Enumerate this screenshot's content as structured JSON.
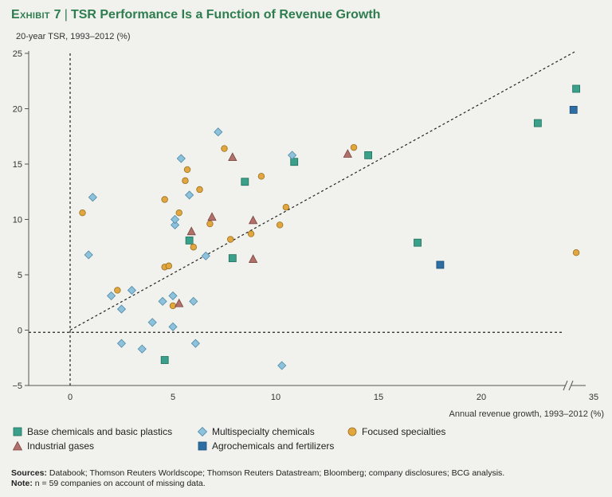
{
  "header": {
    "exhibit": "Exhibit 7",
    "separator": "|",
    "title": "TSR Performance Is a Function of Revenue Growth"
  },
  "colors": {
    "title": "#2e7d4f",
    "base_chem": "#3aa08a",
    "multi_spec": "#8ec2dc",
    "focused": "#e1a63d",
    "industrial": "#b1706a",
    "agro": "#2f6ea5"
  },
  "chart_data": {
    "type": "scatter",
    "ylabel": "20-year TSR, 1993–2012 (%)",
    "xlabel": "Annual revenue growth, 1993–2012 (%)",
    "xlim": [
      -2,
      35
    ],
    "ylim": [
      -5,
      25
    ],
    "x_ticks": [
      "0",
      "5",
      "10",
      "15",
      "20",
      "35"
    ],
    "y_ticks": [
      "25",
      "20",
      "15",
      "10",
      "5",
      "0",
      "−5"
    ],
    "axis_break": "x axis broken between 20 and 35",
    "trend_line": {
      "from": [
        0,
        0
      ],
      "to": [
        24.3,
        25.2
      ],
      "style": "dashed"
    },
    "reference_lines": [
      "x = 0 (dashed)",
      "y = 0 (dashed)"
    ],
    "series": [
      {
        "name": "Base chemicals and basic plastics",
        "marker": "square",
        "points": [
          [
            4.6,
            -2.7
          ],
          [
            5.8,
            8.1
          ],
          [
            7.9,
            6.5
          ],
          [
            8.5,
            13.4
          ],
          [
            10.9,
            15.2
          ],
          [
            14.5,
            15.8
          ],
          [
            16.9,
            7.9
          ],
          [
            21.3,
            18.7
          ],
          [
            24.4,
            21.8
          ]
        ]
      },
      {
        "name": "Multispecialty chemicals",
        "marker": "diamond",
        "points": [
          [
            0.9,
            6.8
          ],
          [
            1.1,
            12.0
          ],
          [
            2.0,
            3.1
          ],
          [
            2.5,
            -1.2
          ],
          [
            2.5,
            1.9
          ],
          [
            3.0,
            3.6
          ],
          [
            3.5,
            -1.7
          ],
          [
            4.0,
            0.7
          ],
          [
            4.5,
            2.6
          ],
          [
            5.0,
            3.1
          ],
          [
            5.0,
            0.3
          ],
          [
            5.1,
            9.5
          ],
          [
            5.1,
            10.0
          ],
          [
            5.4,
            15.5
          ],
          [
            5.8,
            12.2
          ],
          [
            6.0,
            2.6
          ],
          [
            6.1,
            -1.2
          ],
          [
            6.6,
            6.7
          ],
          [
            7.2,
            17.9
          ],
          [
            10.3,
            -3.2
          ],
          [
            10.8,
            15.8
          ]
        ]
      },
      {
        "name": "Focused specialties",
        "marker": "circle",
        "points": [
          [
            0.6,
            10.6
          ],
          [
            2.3,
            3.6
          ],
          [
            4.6,
            5.7
          ],
          [
            4.6,
            11.8
          ],
          [
            4.8,
            5.8
          ],
          [
            5.0,
            2.2
          ],
          [
            5.3,
            10.6
          ],
          [
            5.6,
            13.5
          ],
          [
            5.7,
            14.5
          ],
          [
            6.0,
            7.5
          ],
          [
            6.3,
            12.7
          ],
          [
            6.8,
            9.6
          ],
          [
            7.5,
            16.4
          ],
          [
            7.8,
            8.2
          ],
          [
            8.8,
            8.7
          ],
          [
            9.3,
            13.9
          ],
          [
            10.2,
            9.5
          ],
          [
            10.5,
            11.1
          ],
          [
            13.8,
            16.5
          ],
          [
            24.4,
            7.0
          ]
        ]
      },
      {
        "name": "Industrial gases",
        "marker": "triangle",
        "points": [
          [
            5.3,
            2.4
          ],
          [
            5.9,
            8.9
          ],
          [
            6.9,
            10.2
          ],
          [
            7.9,
            15.6
          ],
          [
            8.9,
            6.4
          ],
          [
            8.9,
            9.9
          ],
          [
            13.5,
            15.9
          ]
        ]
      },
      {
        "name": "Agrochemicals and fertilizers",
        "marker": "square",
        "points": [
          [
            18.0,
            5.9
          ],
          [
            23.6,
            19.9
          ]
        ]
      }
    ]
  },
  "legend": {
    "base_chem": "Base chemicals and basic plastics",
    "multi_spec": "Multispecialty chemicals",
    "focused": "Focused specialties",
    "industrial": "Industrial gases",
    "agro": "Agrochemicals and fertilizers"
  },
  "footer": {
    "sources_label": "Sources:",
    "sources_text": "Databook; Thomson Reuters Worldscope; Thomson Reuters Datastream; Bloomberg; company disclosures; BCG analysis.",
    "note_label": "Note:",
    "note_text": "n = 59 companies on account of missing data."
  }
}
